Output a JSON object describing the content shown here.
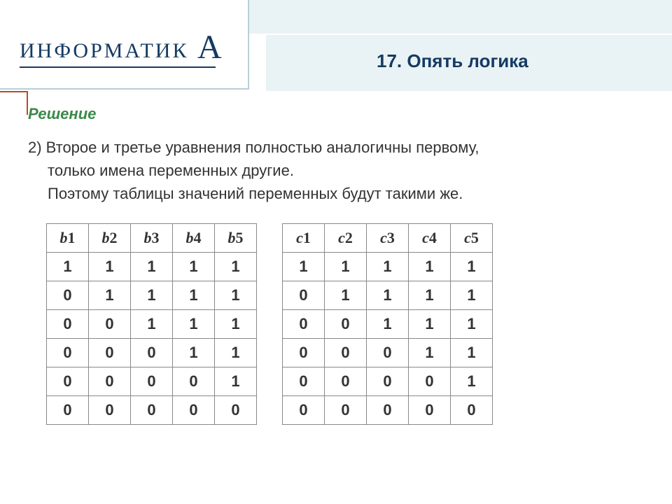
{
  "logo": {
    "text": "ИНФОРМАТИК",
    "accent_letter": "А",
    "text_color": "#153a63"
  },
  "title": "17. Опять логика",
  "solution_label": "Решение",
  "body": {
    "line1": "2) Второе и третье уравнения полностью аналогичны первому,",
    "line2": "только имена переменных другие.",
    "line3": "Поэтому таблицы значений переменных будут такими же."
  },
  "tables": {
    "left": {
      "headers": [
        [
          "b",
          "1"
        ],
        [
          "b",
          "2"
        ],
        [
          "b",
          "3"
        ],
        [
          "b",
          "4"
        ],
        [
          "b",
          "5"
        ]
      ],
      "rows": [
        [
          "1",
          "1",
          "1",
          "1",
          "1"
        ],
        [
          "0",
          "1",
          "1",
          "1",
          "1"
        ],
        [
          "0",
          "0",
          "1",
          "1",
          "1"
        ],
        [
          "0",
          "0",
          "0",
          "1",
          "1"
        ],
        [
          "0",
          "0",
          "0",
          "0",
          "1"
        ],
        [
          "0",
          "0",
          "0",
          "0",
          "0"
        ]
      ]
    },
    "right": {
      "headers": [
        [
          "c",
          "1"
        ],
        [
          "c",
          "2"
        ],
        [
          "c",
          "3"
        ],
        [
          "c",
          "4"
        ],
        [
          "c",
          "5"
        ]
      ],
      "rows": [
        [
          "1",
          "1",
          "1",
          "1",
          "1"
        ],
        [
          "0",
          "1",
          "1",
          "1",
          "1"
        ],
        [
          "0",
          "0",
          "1",
          "1",
          "1"
        ],
        [
          "0",
          "0",
          "0",
          "1",
          "1"
        ],
        [
          "0",
          "0",
          "0",
          "0",
          "1"
        ],
        [
          "0",
          "0",
          "0",
          "0",
          "0"
        ]
      ]
    }
  },
  "colors": {
    "header_bg": "#e9f2f4",
    "logo_border": "#b8cfd6",
    "accent": "#b84a2a",
    "solution": "#3a8a4a",
    "table_border": "#888888"
  }
}
